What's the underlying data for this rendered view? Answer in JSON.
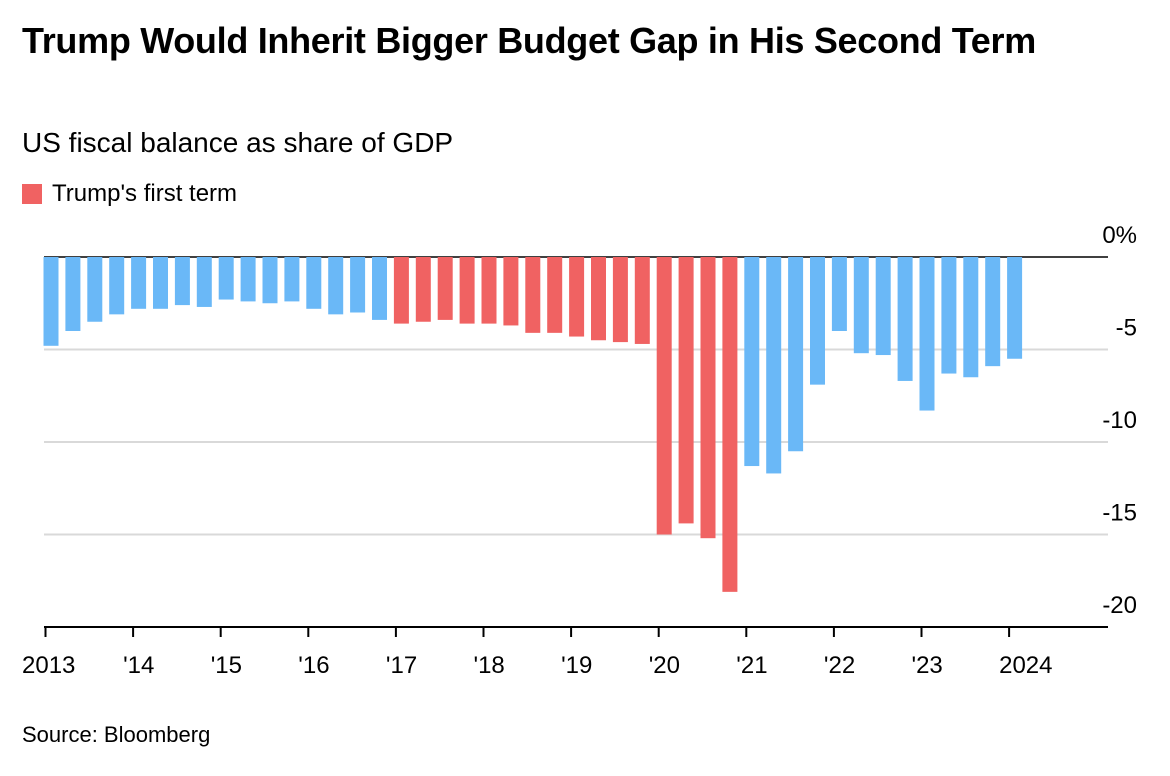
{
  "title": "Trump Would Inherit Bigger Budget Gap in His Second Term",
  "subtitle": "US fiscal balance as share of GDP",
  "source": "Source: Bloomberg",
  "colors": {
    "default": "#6ab8f7",
    "highlight": "#f06262",
    "grid": "#d9d9d9",
    "axis": "#000000"
  },
  "chart_data": {
    "type": "bar",
    "title": "Trump Would Inherit Bigger Budget Gap in His Second Term",
    "subtitle": "US fiscal balance as share of GDP",
    "xlabel": "",
    "ylabel": "",
    "ylim": [
      -20,
      0
    ],
    "y_ticks": [
      {
        "value": 0,
        "label": "0%"
      },
      {
        "value": -5,
        "label": "-5"
      },
      {
        "value": -10,
        "label": "-10"
      },
      {
        "value": -15,
        "label": "-15"
      },
      {
        "value": -20,
        "label": "-20"
      }
    ],
    "x_tick_labels": [
      "2013",
      "'14",
      "'15",
      "'16",
      "'17",
      "'18",
      "'19",
      "'20",
      "'21",
      "'22",
      "'23",
      "2024"
    ],
    "grid": true,
    "legend_position": "top-left",
    "legend": [
      {
        "name": "Trump's first term",
        "color": "#f06262"
      }
    ],
    "categories": [
      "2013 Q1",
      "2013 Q2",
      "2013 Q3",
      "2013 Q4",
      "2014 Q1",
      "2014 Q2",
      "2014 Q3",
      "2014 Q4",
      "2015 Q1",
      "2015 Q2",
      "2015 Q3",
      "2015 Q4",
      "2016 Q1",
      "2016 Q2",
      "2016 Q3",
      "2016 Q4",
      "2017 Q1",
      "2017 Q2",
      "2017 Q3",
      "2017 Q4",
      "2018 Q1",
      "2018 Q2",
      "2018 Q3",
      "2018 Q4",
      "2019 Q1",
      "2019 Q2",
      "2019 Q3",
      "2019 Q4",
      "2020 Q1",
      "2020 Q2",
      "2020 Q3",
      "2020 Q4",
      "2021 Q1",
      "2021 Q2",
      "2021 Q3",
      "2021 Q4",
      "2022 Q1",
      "2022 Q2",
      "2022 Q3",
      "2022 Q4",
      "2023 Q1",
      "2023 Q2",
      "2023 Q3",
      "2023 Q4",
      "2024 Q1",
      "2024 Q2",
      "2024 Q3",
      "2024 Q4"
    ],
    "series": [
      {
        "name": "Trump's first term",
        "values": [
          -4.8,
          -4.0,
          -3.5,
          -3.1,
          -2.8,
          -2.8,
          -2.6,
          -2.7,
          -2.3,
          -2.4,
          -2.5,
          -2.4,
          -2.8,
          -3.1,
          -3.0,
          -3.4,
          -3.6,
          -3.5,
          -3.4,
          -3.6,
          -3.6,
          -3.7,
          -4.1,
          -4.1,
          -4.3,
          -4.5,
          -4.6,
          -4.7,
          -15.0,
          -14.4,
          -15.2,
          -18.1,
          -11.3,
          -11.7,
          -10.5,
          -6.9,
          -4.0,
          -5.2,
          -5.3,
          -6.7,
          -8.3,
          -6.3,
          -6.5,
          -5.9,
          -5.5,
          0,
          0,
          0
        ],
        "highlight_indices": [
          16,
          17,
          18,
          19,
          20,
          21,
          22,
          23,
          24,
          25,
          26,
          27,
          28,
          29,
          30,
          31
        ]
      }
    ]
  }
}
